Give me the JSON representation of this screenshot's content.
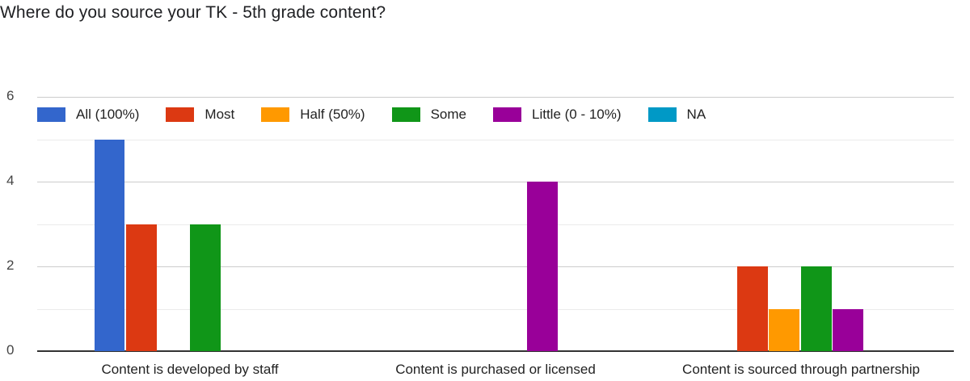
{
  "title": "Where do you source your TK - 5th grade content?",
  "chart_data": {
    "type": "bar",
    "title": "Where do you source your TK - 5th grade content?",
    "xlabel": "",
    "ylabel": "",
    "ylim": [
      0,
      6
    ],
    "yticks": [
      "0",
      "2",
      "4",
      "6"
    ],
    "grid": true,
    "legend_position": "top",
    "categories": [
      "Content is developed by staff",
      "Content is purchased or licensed",
      "Content is sourced through partnership"
    ],
    "series": [
      {
        "name": "All (100%)",
        "color": "#3366cc",
        "values": [
          5,
          0,
          0
        ]
      },
      {
        "name": "Most",
        "color": "#dc3912",
        "values": [
          3,
          0,
          2
        ]
      },
      {
        "name": "Half (50%)",
        "color": "#ff9900",
        "values": [
          0,
          0,
          1
        ]
      },
      {
        "name": "Some",
        "color": "#109618",
        "values": [
          3,
          0,
          2
        ]
      },
      {
        "name": "Little (0 - 10%)",
        "color": "#990099",
        "values": [
          0,
          4,
          1
        ]
      },
      {
        "name": "NA",
        "color": "#0099c6",
        "values": [
          0,
          0,
          0
        ]
      }
    ]
  }
}
